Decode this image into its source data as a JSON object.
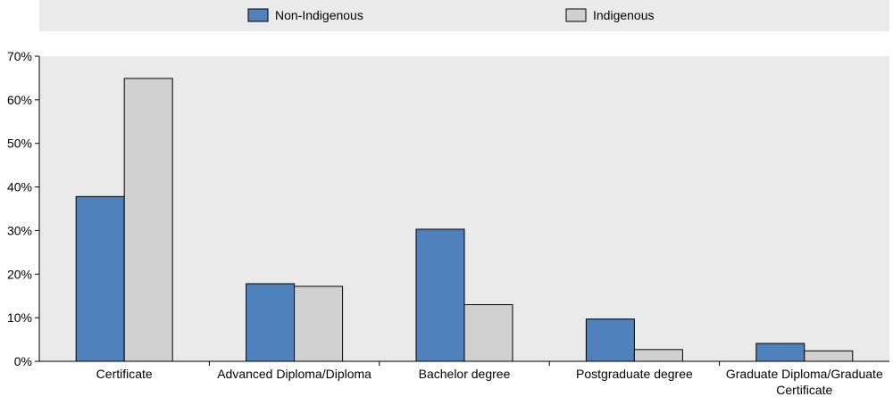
{
  "chart_data": {
    "type": "bar",
    "categories": [
      "Certificate",
      "Advanced Diploma/Diploma",
      "Bachelor degree",
      "Postgraduate degree",
      "Graduate Diploma/Graduate Certificate"
    ],
    "series": [
      {
        "name": "Non-Indigenous",
        "values": [
          37.8,
          17.8,
          30.3,
          9.7,
          4.1
        ],
        "color": "#4f81bd"
      },
      {
        "name": "Indigenous",
        "values": [
          64.9,
          17.2,
          13.0,
          2.7,
          2.4
        ],
        "color": "#d0d0d0"
      }
    ],
    "title": "",
    "xlabel": "",
    "ylabel": "",
    "ylim": [
      0,
      70
    ],
    "ytick_step": 10,
    "ytick_format": "percent",
    "grid": false,
    "legend_position": "top",
    "colors": {
      "plot_background": "#eaeaea",
      "legend_background": "#eaeaea",
      "axis": "#000000"
    }
  }
}
